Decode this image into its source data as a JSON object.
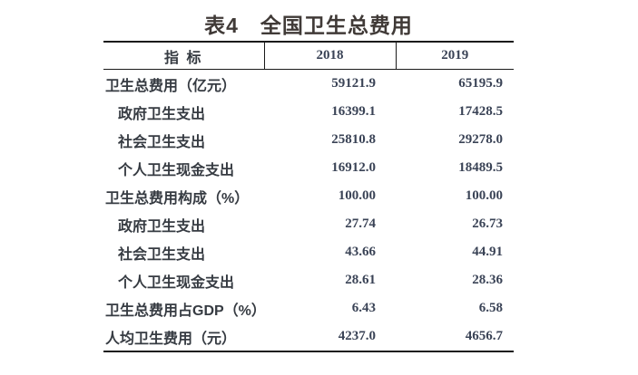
{
  "title": "表4　全国卫生总费用",
  "table": {
    "columns": {
      "indicator": "指 标",
      "y2018": "2018",
      "y2019": "2019"
    },
    "rows": [
      {
        "label": "卫生总费用（亿元）",
        "indent": false,
        "y2018": "59121.9",
        "y2019": "65195.9"
      },
      {
        "label": "政府卫生支出",
        "indent": true,
        "y2018": "16399.1",
        "y2019": "17428.5"
      },
      {
        "label": "社会卫生支出",
        "indent": true,
        "y2018": "25810.8",
        "y2019": "29278.0"
      },
      {
        "label": "个人卫生现金支出",
        "indent": true,
        "y2018": "16912.0",
        "y2019": "18489.5"
      },
      {
        "label": "卫生总费用构成（%）",
        "indent": false,
        "y2018": "100.00",
        "y2019": "100.00"
      },
      {
        "label": "政府卫生支出",
        "indent": true,
        "y2018": "27.74",
        "y2019": "26.73"
      },
      {
        "label": "社会卫生支出",
        "indent": true,
        "y2018": "43.66",
        "y2019": "44.91"
      },
      {
        "label": "个人卫生现金支出",
        "indent": true,
        "y2018": "28.61",
        "y2019": "28.36"
      },
      {
        "label": "卫生总费用占GDP（%）",
        "indent": false,
        "y2018": "6.43",
        "y2019": "6.58"
      },
      {
        "label": "人均卫生费用（元）",
        "indent": false,
        "y2018": "4237.0",
        "y2019": "4656.7"
      }
    ]
  },
  "colors": {
    "background": "#ffffff",
    "title_text": "#403a37",
    "label_text": "#363b42",
    "number_text": "#3a4356",
    "border": "#1a1a1a"
  }
}
